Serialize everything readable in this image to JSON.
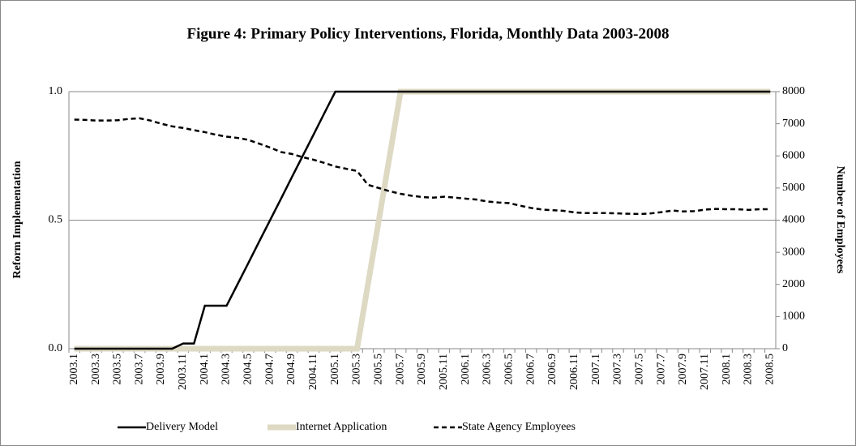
{
  "chart_data": {
    "type": "line",
    "title": "Figure 4: Primary Policy Interventions, Florida, Monthly Data 2003-2008",
    "y_label": "Reform Implementation",
    "y2_label": "Number of Employees",
    "categories": [
      "2003.1",
      null,
      "2003.3",
      null,
      "2003.5",
      null,
      "2003.7",
      null,
      "2003.9",
      null,
      "2003.11",
      null,
      "2004.1",
      null,
      "2004.3",
      null,
      "2004.5",
      null,
      "2004.7",
      null,
      "2004.9",
      null,
      "2004.11",
      null,
      "2005.1",
      null,
      "2005.3",
      null,
      "2005.5",
      null,
      "2005.7",
      null,
      "2005.9",
      null,
      "2005.11",
      null,
      "2006.1",
      null,
      "2006.3",
      null,
      "2006.5",
      null,
      "2006.7",
      null,
      "2006.9",
      null,
      "2006.11",
      null,
      "2007.1",
      null,
      "2007.3",
      null,
      "2007.5",
      null,
      "2007.7",
      null,
      "2007.9",
      null,
      "2007.11",
      null,
      "2008.1",
      null,
      "2008.3",
      null,
      "2008.5"
    ],
    "series": [
      {
        "name": "Delivery Model",
        "color": "#000000",
        "linestyle": "solid",
        "axis": "y",
        "values": [
          0,
          0,
          0,
          0,
          0,
          0,
          0,
          0,
          0,
          0,
          0.02,
          0.02,
          0.167,
          0.167,
          0.167,
          0.25,
          0.333,
          0.417,
          0.5,
          0.583,
          0.667,
          0.75,
          0.833,
          0.917,
          1,
          1,
          1,
          1,
          1,
          1,
          1,
          1,
          1,
          1,
          1,
          1,
          1,
          1,
          1,
          1,
          1,
          1,
          1,
          1,
          1,
          1,
          1,
          1,
          1,
          1,
          1,
          1,
          1,
          1,
          1,
          1,
          1,
          1,
          1,
          1,
          1,
          1,
          1,
          1,
          1
        ]
      },
      {
        "name": "Internet Application",
        "color": "#ddd9c3",
        "linestyle": "thick",
        "axis": "y",
        "values": [
          0,
          0,
          0,
          0,
          0,
          0,
          0,
          0,
          0,
          0,
          0,
          0,
          0,
          0,
          0,
          0,
          0,
          0,
          0,
          0,
          0,
          0,
          0,
          0,
          0,
          0,
          0,
          0.25,
          0.5,
          0.75,
          1,
          1,
          1,
          1,
          1,
          1,
          1,
          1,
          1,
          1,
          1,
          1,
          1,
          1,
          1,
          1,
          1,
          1,
          1,
          1,
          1,
          1,
          1,
          1,
          1,
          1,
          1,
          1,
          1,
          1,
          1,
          1,
          1,
          1,
          1
        ]
      },
      {
        "name": "State Agency Employees",
        "color": "#000000",
        "linestyle": "dashed",
        "axis": "y2",
        "values": [
          7130,
          7120,
          7100,
          7100,
          7110,
          7150,
          7170,
          7100,
          7000,
          6920,
          6870,
          6800,
          6740,
          6660,
          6600,
          6560,
          6500,
          6380,
          6260,
          6120,
          6060,
          5960,
          5880,
          5780,
          5670,
          5600,
          5530,
          5100,
          5000,
          4900,
          4820,
          4760,
          4720,
          4700,
          4730,
          4700,
          4670,
          4640,
          4580,
          4550,
          4530,
          4450,
          4380,
          4330,
          4310,
          4290,
          4240,
          4220,
          4220,
          4220,
          4210,
          4200,
          4190,
          4210,
          4250,
          4300,
          4270,
          4280,
          4330,
          4350,
          4340,
          4340,
          4320,
          4340,
          4340
        ]
      }
    ],
    "ylim": [
      0,
      1
    ],
    "yticks": [
      {
        "value": 0,
        "label": "0.0"
      },
      0.5,
      {
        "value": 1,
        "label": "1.0"
      }
    ],
    "y2lim": [
      0,
      8000
    ],
    "y2ticks": [
      0,
      1000,
      2000,
      3000,
      4000,
      5000,
      6000,
      7000,
      8000
    ],
    "grid": true,
    "legend": "bottom"
  }
}
